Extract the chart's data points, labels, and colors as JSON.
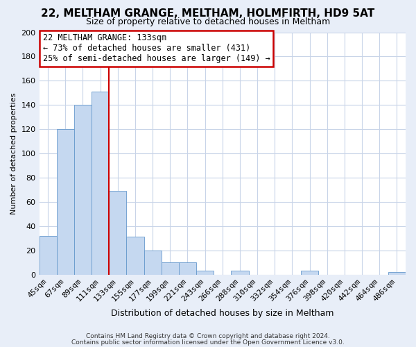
{
  "title": "22, MELTHAM GRANGE, MELTHAM, HOLMFIRTH, HD9 5AT",
  "subtitle": "Size of property relative to detached houses in Meltham",
  "xlabel": "Distribution of detached houses by size in Meltham",
  "ylabel": "Number of detached properties",
  "bin_labels": [
    "45sqm",
    "67sqm",
    "89sqm",
    "111sqm",
    "133sqm",
    "155sqm",
    "177sqm",
    "199sqm",
    "221sqm",
    "243sqm",
    "266sqm",
    "288sqm",
    "310sqm",
    "332sqm",
    "354sqm",
    "376sqm",
    "398sqm",
    "420sqm",
    "442sqm",
    "464sqm",
    "486sqm"
  ],
  "bar_values": [
    32,
    120,
    140,
    151,
    69,
    31,
    20,
    10,
    10,
    3,
    0,
    3,
    0,
    0,
    0,
    3,
    0,
    0,
    0,
    0,
    2
  ],
  "bar_color": "#c5d8f0",
  "bar_edge_color": "#6699cc",
  "vline_color": "#cc0000",
  "vline_x_index": 4,
  "annotation_title": "22 MELTHAM GRANGE: 133sqm",
  "annotation_line1": "← 73% of detached houses are smaller (431)",
  "annotation_line2": "25% of semi-detached houses are larger (149) →",
  "annotation_box_facecolor": "#ffffff",
  "annotation_box_edgecolor": "#cc0000",
  "ylim": [
    0,
    200
  ],
  "yticks": [
    0,
    20,
    40,
    60,
    80,
    100,
    120,
    140,
    160,
    180,
    200
  ],
  "footer1": "Contains HM Land Registry data © Crown copyright and database right 2024.",
  "footer2": "Contains public sector information licensed under the Open Government Licence v3.0.",
  "bg_color": "#e8eef8",
  "plot_bg_color": "#ffffff",
  "grid_color": "#c8d4e8",
  "title_fontsize": 11,
  "subtitle_fontsize": 9,
  "xlabel_fontsize": 9,
  "ylabel_fontsize": 8,
  "tick_fontsize": 8,
  "annot_fontsize": 8.5,
  "footer_fontsize": 6.5
}
